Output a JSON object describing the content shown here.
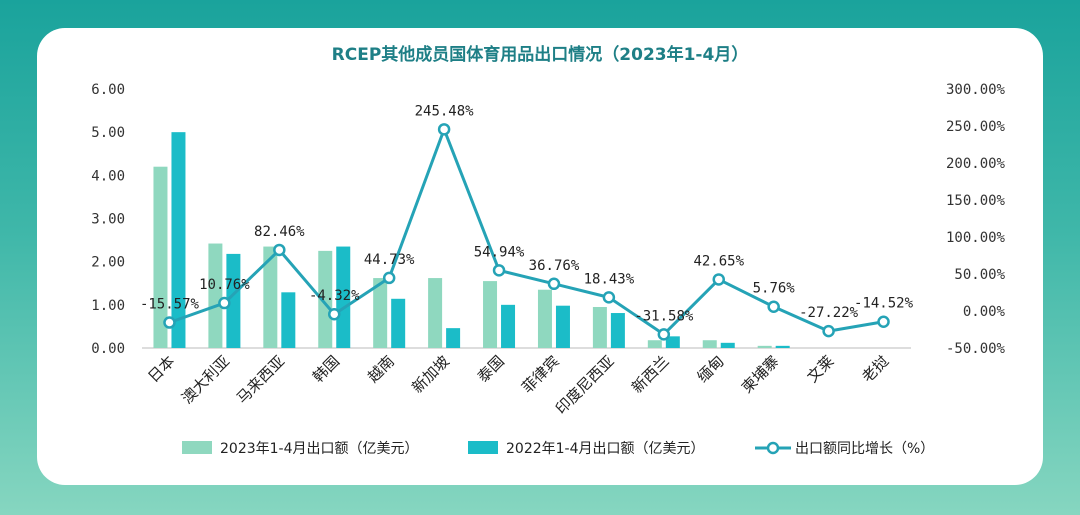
{
  "chart_data": {
    "type": "bar",
    "title": "RCEP其他成员国体育用品出口情况（2023年1-4月）",
    "categories": [
      "日本",
      "澳大利亚",
      "马来西亚",
      "韩国",
      "越南",
      "新加坡",
      "泰国",
      "菲律宾",
      "印度尼西亚",
      "新西兰",
      "缅甸",
      "柬埔寨",
      "文莱",
      "老挝"
    ],
    "series": [
      {
        "name": "2023年1-4月出口额（亿美元）",
        "type": "bar",
        "axis": "left",
        "color": "#8fd8bf",
        "values": [
          4.2,
          2.42,
          2.35,
          2.25,
          1.62,
          1.62,
          1.55,
          1.35,
          0.95,
          0.18,
          0.18,
          0.05,
          0.0,
          0.0
        ]
      },
      {
        "name": "2022年1-4月出口额（亿美元）",
        "type": "bar",
        "axis": "left",
        "color": "#1bbcc8",
        "values": [
          5.0,
          2.18,
          1.29,
          2.35,
          1.14,
          0.46,
          1.0,
          0.98,
          0.81,
          0.27,
          0.12,
          0.05,
          0.0,
          0.0
        ]
      },
      {
        "name": "出口额同比增长（%）",
        "type": "line",
        "axis": "right",
        "color": "#25a3b6",
        "values": [
          -15.57,
          10.76,
          82.46,
          -4.32,
          44.73,
          245.48,
          54.94,
          36.76,
          18.43,
          -31.58,
          42.65,
          5.76,
          -27.22,
          -14.52
        ],
        "labels": [
          "-15.57%",
          "10.76%",
          "82.46%",
          "-4.32%",
          "44.73%",
          "245.48%",
          "54.94%",
          "36.76%",
          "18.43%",
          "-31.58%",
          "42.65%",
          "5.76%",
          "-27.22%",
          "-14.52%"
        ]
      }
    ],
    "left_axis": {
      "ylim": [
        0,
        6
      ],
      "ticks": [
        "0.00",
        "1.00",
        "2.00",
        "3.00",
        "4.00",
        "5.00",
        "6.00"
      ]
    },
    "right_axis": {
      "ylim": [
        -50,
        300
      ],
      "ticks": [
        "-50.00%",
        "0.00%",
        "50.00%",
        "100.00%",
        "150.00%",
        "200.00%",
        "250.00%",
        "300.00%"
      ]
    },
    "legend_position": "bottom",
    "grid": false
  }
}
